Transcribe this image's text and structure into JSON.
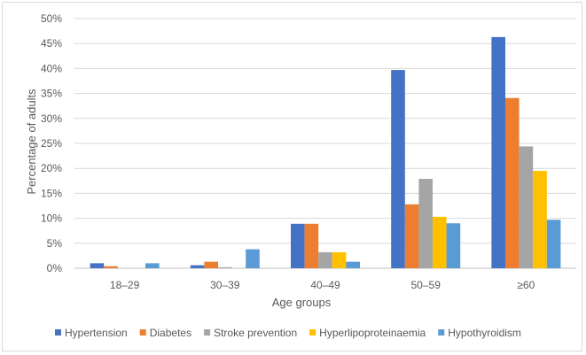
{
  "chart_data": {
    "type": "bar",
    "title": "",
    "xlabel": "Age groups",
    "ylabel": "Percentage of adults",
    "ylim": [
      0,
      50
    ],
    "y_ticks": [
      "0%",
      "5%",
      "10%",
      "15%",
      "20%",
      "25%",
      "30%",
      "35%",
      "40%",
      "45%",
      "50%"
    ],
    "grid": "horizontal",
    "legend_position": "bottom",
    "categories": [
      "18–29",
      "30–39",
      "40–49",
      "50–59",
      "≥60"
    ],
    "series": [
      {
        "name": "Hypertension",
        "color": "#4472c4",
        "values": [
          1.0,
          0.6,
          8.9,
          39.7,
          46.3
        ]
      },
      {
        "name": "Diabetes",
        "color": "#ed7d31",
        "values": [
          0.4,
          1.3,
          8.9,
          12.8,
          34.1
        ]
      },
      {
        "name": "Stroke prevention",
        "color": "#a5a5a5",
        "values": [
          0.0,
          0.2,
          3.2,
          17.9,
          24.4
        ]
      },
      {
        "name": "Hyperlipoproteinaemia",
        "color": "#ffc000",
        "values": [
          0.0,
          0.0,
          3.2,
          10.3,
          19.5
        ]
      },
      {
        "name": "Hypothyroidism",
        "color": "#5b9bd5",
        "values": [
          1.0,
          3.8,
          1.3,
          9.0,
          9.7
        ]
      }
    ]
  }
}
